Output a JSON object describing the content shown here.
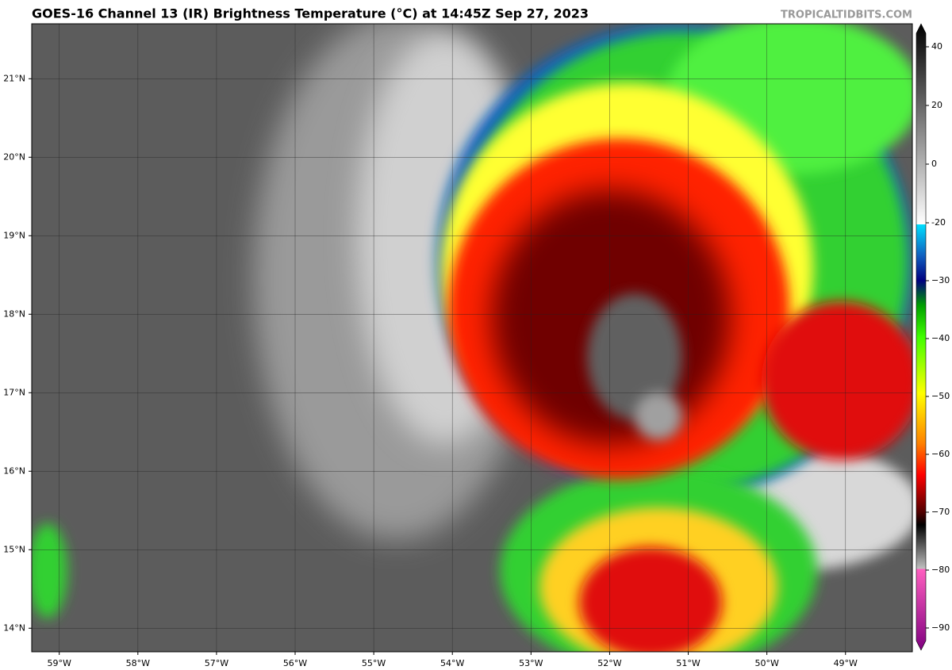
{
  "map": {
    "title": "GOES-16 Channel 13 (IR) Brightness Temperature (°C) at 14:45Z Sep 27, 2023",
    "watermark": "TROPICALTIDBITS.COM",
    "latlim": [
      13.7,
      21.7
    ],
    "lonlim": [
      -59.35,
      -48.15
    ],
    "latitudes": [
      {
        "value": 21,
        "label": "21°N"
      },
      {
        "value": 20,
        "label": "20°N"
      },
      {
        "value": 19,
        "label": "19°N"
      },
      {
        "value": 18,
        "label": "18°N"
      },
      {
        "value": 17,
        "label": "17°N"
      },
      {
        "value": 16,
        "label": "16°N"
      },
      {
        "value": 15,
        "label": "15°N"
      },
      {
        "value": 14,
        "label": "14°N"
      }
    ],
    "longitudes": [
      {
        "value": -59,
        "label": "59°W"
      },
      {
        "value": -58,
        "label": "58°W"
      },
      {
        "value": -57,
        "label": "57°W"
      },
      {
        "value": -56,
        "label": "56°W"
      },
      {
        "value": -55,
        "label": "55°W"
      },
      {
        "value": -54,
        "label": "54°W"
      },
      {
        "value": -53,
        "label": "53°W"
      },
      {
        "value": -52,
        "label": "52°W"
      },
      {
        "value": -51,
        "label": "51°W"
      },
      {
        "value": -50,
        "label": "50°W"
      },
      {
        "value": -49,
        "label": "49°W"
      }
    ],
    "colorbar_ticks": [
      40,
      20,
      0,
      -20,
      {
        "value": -30,
        "label": "−30"
      },
      {
        "value": -40,
        "label": "−40"
      },
      {
        "value": -50,
        "label": "−50"
      },
      {
        "value": -60,
        "label": "−60"
      },
      {
        "value": -70,
        "label": "−70"
      },
      {
        "value": -80,
        "label": "−80"
      },
      {
        "value": -90,
        "label": "−90"
      }
    ]
  }
}
